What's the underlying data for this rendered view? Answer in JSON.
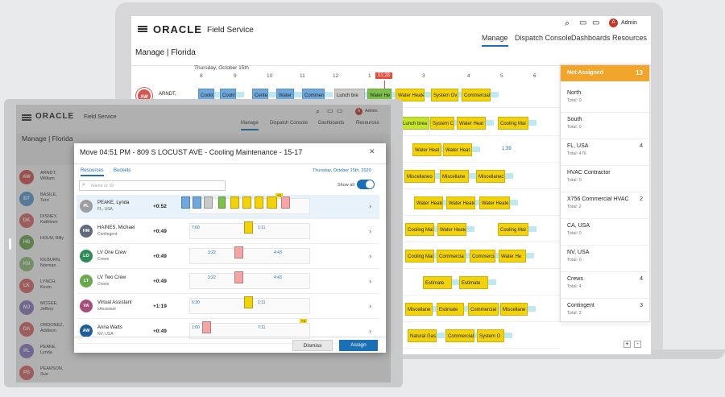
{
  "back": {
    "logo": "ORACLE",
    "app": "Field Service",
    "admin": "Admin",
    "tabs": [
      "Manage",
      "Dispatch Console",
      "Dashboards",
      "Resources"
    ],
    "page_title": "Manage | Florida",
    "date": "Thursday, October 15th",
    "hours": [
      "8",
      "9",
      "10",
      "11",
      "12",
      "1",
      "2",
      "3",
      "4",
      "5",
      "6"
    ],
    "current_time": "01:28",
    "first_tech": "ARNDT,",
    "row_labels": {
      "r1": [
        "Coolin",
        "Coolin",
        "Cente",
        "Water",
        "Commerci",
        "Lunch bre",
        "Water He",
        "Water Heate",
        "System Ov",
        "Commercial"
      ],
      "r2": [
        "Lunch brea",
        "System C",
        "Water Heat",
        "Cooling Mai"
      ],
      "r3": [
        "Water Heat",
        "Water Heat",
        "1:39"
      ],
      "r4": [
        "Miscellaneo",
        "Miscellane",
        "Miscellanec"
      ],
      "r5": [
        "Water Heate",
        "Water Heate",
        "Water Heate"
      ],
      "r6": [
        "Cooling Mai",
        "Water Heate",
        "Cooling Mai"
      ],
      "r7": [
        "Cooling Mai",
        "Commercia",
        "Commercia",
        "Water He"
      ],
      "r8": [
        "Estimate",
        "Estimate"
      ],
      "r9": [
        "Miscellane",
        "Estimate",
        "Commercial",
        "Miscellane"
      ],
      "r10": [
        "Natural Gas",
        "Commercial",
        "System O"
      ]
    },
    "unassigned": {
      "title": "Not Assigned",
      "count": "13",
      "items": [
        {
          "name": "North",
          "total": "Total: 0",
          "count": ""
        },
        {
          "name": "South",
          "total": "Total: 0",
          "count": ""
        },
        {
          "name": "FL, USA",
          "total": "Total: 476",
          "count": "4"
        },
        {
          "name": "HVAC Contractor",
          "total": "Total: 0",
          "count": ""
        },
        {
          "name": "X756 Commercial HVAC",
          "total": "Total: 2",
          "count": "2"
        },
        {
          "name": "CA, USA",
          "total": "Total: 0",
          "count": ""
        },
        {
          "name": "NV, USA",
          "total": "Total: 0",
          "count": ""
        },
        {
          "name": "Crews",
          "total": "Total: 4",
          "count": "4"
        },
        {
          "name": "Contingent",
          "total": "Total: 3",
          "count": "3"
        }
      ]
    },
    "zoom_in": "+",
    "zoom_out": "-"
  },
  "front": {
    "logo": "ORACLE",
    "app": "Field Service",
    "admin": "Admin",
    "tabs": [
      "Manage",
      "Dispatch Console",
      "Dashboards",
      "Resources"
    ],
    "page_title": "Manage | Florida",
    "techs": [
      {
        "initials": "AW",
        "name": "ARNDT,",
        "sub": "William",
        "color": "#d9534f"
      },
      {
        "initials": "BT",
        "name": "BASILE,",
        "sub": "Terri",
        "color": "#5b9bd5"
      },
      {
        "initials": "DK",
        "name": "DISNEY,",
        "sub": "Kathleen",
        "color": "#e06666"
      },
      {
        "initials": "HB",
        "name": "HOLM, Billy",
        "sub": "",
        "color": "#6aa84f"
      },
      {
        "initials": "KN",
        "name": "KILBURN,",
        "sub": "Norman",
        "color": "#93c47d"
      },
      {
        "initials": "LK",
        "name": "LYNCH,",
        "sub": "Kevin",
        "color": "#e06666"
      },
      {
        "initials": "MJ",
        "name": "MCGEE,",
        "sub": "Jeffery",
        "color": "#8e7cc3"
      },
      {
        "initials": "OA",
        "name": "ORDONEZ,",
        "sub": "Addison",
        "color": "#e06666"
      },
      {
        "initials": "PL",
        "name": "PEAKE, Lynda",
        "sub": "",
        "color": "#8e7cc3"
      },
      {
        "initials": "PS",
        "name": "PEARSON,",
        "sub": "Sue",
        "color": "#e06666"
      }
    ]
  },
  "dialog": {
    "title": "Move 04:51 PM - 809 S LOCUST AVE - Cooling Maintenance - 15-17",
    "close": "✕",
    "tabs": [
      "Resources",
      "Buckets"
    ],
    "date": "Thursday, October 15th, 2020",
    "search_placeholder": "Name or ID",
    "show_all": "Show all",
    "rows": [
      {
        "initials": "PL",
        "name": "PEAKE, Lynda",
        "sub": "FL, USA",
        "time": "+0:52",
        "color": "#9e9e9e",
        "left": "",
        "right": "",
        "badge": "+1"
      },
      {
        "initials": "HM",
        "name": "HAINES, Michael",
        "sub": "Contingent",
        "time": "+0:49",
        "color": "#5f6b7a",
        "left": "7:00",
        "right": "1:11",
        "badge": ""
      },
      {
        "initials": "LO",
        "name": "LV One Crew",
        "sub": "Crews",
        "time": "+0:49",
        "color": "#2e8b57",
        "left": "3:22",
        "right": "4:43",
        "badge": ""
      },
      {
        "initials": "LT",
        "name": "LV Two Crew",
        "sub": "Crews",
        "time": "+0:49",
        "color": "#6aa84f",
        "left": "3:22",
        "right": "4:43",
        "badge": ""
      },
      {
        "initials": "VA",
        "name": "Virtual Assistant",
        "sub": "xAssistant",
        "time": "+1:19",
        "color": "#a64d79",
        "left": "6:30",
        "right": "1:11",
        "badge": ""
      },
      {
        "initials": "AW",
        "name": "Anna Watts",
        "sub": "NV, USA",
        "time": "+0:49",
        "color": "#1f5f99",
        "left": "1:00",
        "right": "7:11",
        "badge": "+1"
      }
    ],
    "dismiss": "Dismiss",
    "assign": "Assign"
  }
}
